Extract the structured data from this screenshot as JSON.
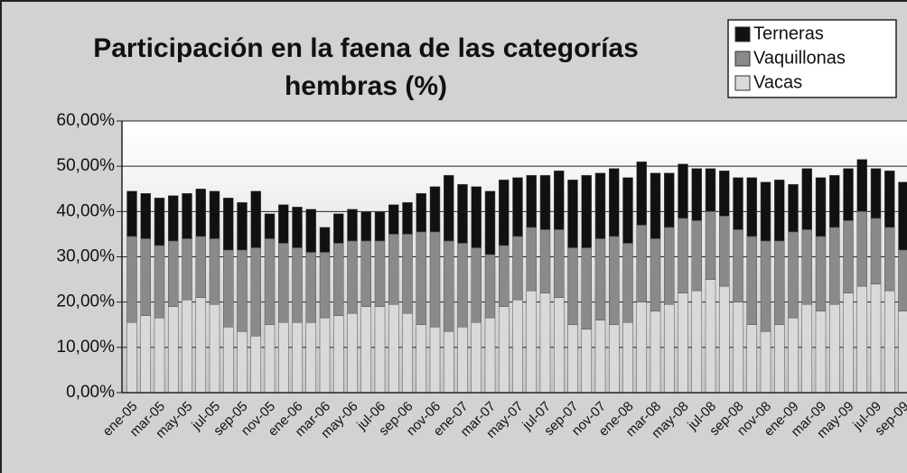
{
  "chart_data": {
    "type": "stacked_bar",
    "title": [
      "Participación en la faena de las categorías",
      "hembras (%)"
    ],
    "categories": [
      "ene-05",
      null,
      "mar-05",
      null,
      "may-05",
      null,
      "jul-05",
      null,
      "sep-05",
      null,
      "nov-05",
      null,
      "ene-06",
      null,
      "mar-06",
      null,
      "may-06",
      null,
      "jul-06",
      null,
      "sep-06",
      null,
      "nov-06",
      null,
      "ene-07",
      null,
      "mar-07",
      null,
      "may-07",
      null,
      "jul-07",
      null,
      "sep-07",
      null,
      "nov-07",
      null,
      "ene-08",
      null,
      "mar-08",
      null,
      "may-08",
      null,
      "jul-08",
      null,
      "sep-08",
      null,
      "nov-08",
      null,
      "ene-09",
      null,
      "mar-09",
      null,
      "may-09",
      null,
      "jul-09",
      null,
      "sep-09"
    ],
    "series": [
      {
        "name": "Vacas",
        "color": "#d9d9d9",
        "values": [
          15.5,
          17,
          16.5,
          19,
          20.5,
          21,
          19.5,
          14.5,
          13.5,
          12.5,
          15,
          15.5,
          15.5,
          15.5,
          16.5,
          17,
          17.5,
          19,
          19,
          19.5,
          17.5,
          15,
          14.5,
          13.5,
          14.5,
          15.5,
          16.5,
          19,
          20.5,
          22.5,
          22,
          21,
          15,
          14,
          16,
          15,
          15.5,
          20,
          18,
          19.5,
          22,
          22.5,
          25,
          23.5,
          20,
          15,
          13.5,
          15,
          16.5,
          19.5,
          18,
          19.5,
          22,
          23.5,
          24,
          22.5,
          18
        ]
      },
      {
        "name": "Vaquillonas",
        "color": "#8a8a8a",
        "values": [
          19,
          17,
          16,
          14.5,
          13.5,
          13.5,
          14.5,
          17,
          18,
          19.5,
          19,
          17.5,
          16.5,
          15.5,
          14.5,
          16,
          16,
          14.5,
          14.5,
          15.5,
          17.5,
          20.5,
          21,
          20,
          18.5,
          16.5,
          14,
          13.5,
          14,
          14,
          14,
          15,
          17,
          18,
          18,
          19.5,
          17.5,
          17,
          16,
          17,
          16.5,
          15.5,
          15,
          15.5,
          16,
          19.5,
          20,
          18.5,
          19,
          16.5,
          16.5,
          17,
          16,
          16.5,
          14.5,
          14,
          13.5
        ]
      },
      {
        "name": "Terneras",
        "color": "#111111",
        "values": [
          10,
          10,
          10.5,
          10,
          10,
          10.5,
          10.5,
          11.5,
          10.5,
          12.5,
          5.5,
          8.5,
          9,
          9.5,
          5.5,
          6.5,
          7,
          6.5,
          6.5,
          6.5,
          7,
          8.5,
          10,
          14.5,
          13,
          13.5,
          14,
          14.5,
          13,
          11.5,
          12,
          13,
          15,
          16,
          14.5,
          15,
          14.5,
          14,
          14.5,
          12,
          12,
          11.5,
          9.5,
          10,
          11.5,
          13,
          13,
          13.5,
          10.5,
          13.5,
          13,
          11.5,
          11.5,
          11.5,
          11,
          12.5,
          15
        ]
      }
    ],
    "ylim": [
      0,
      60
    ],
    "yticks": [
      {
        "value": 0,
        "label": "0,00%"
      },
      {
        "value": 10,
        "label": "10,00%"
      },
      {
        "value": 20,
        "label": "20,00%"
      },
      {
        "value": 30,
        "label": "30,00%"
      },
      {
        "value": 40,
        "label": "40,00%"
      },
      {
        "value": 50,
        "label": "50,00%"
      },
      {
        "value": 60,
        "label": "60,00%"
      }
    ],
    "grid": true,
    "legend": "top-right"
  }
}
